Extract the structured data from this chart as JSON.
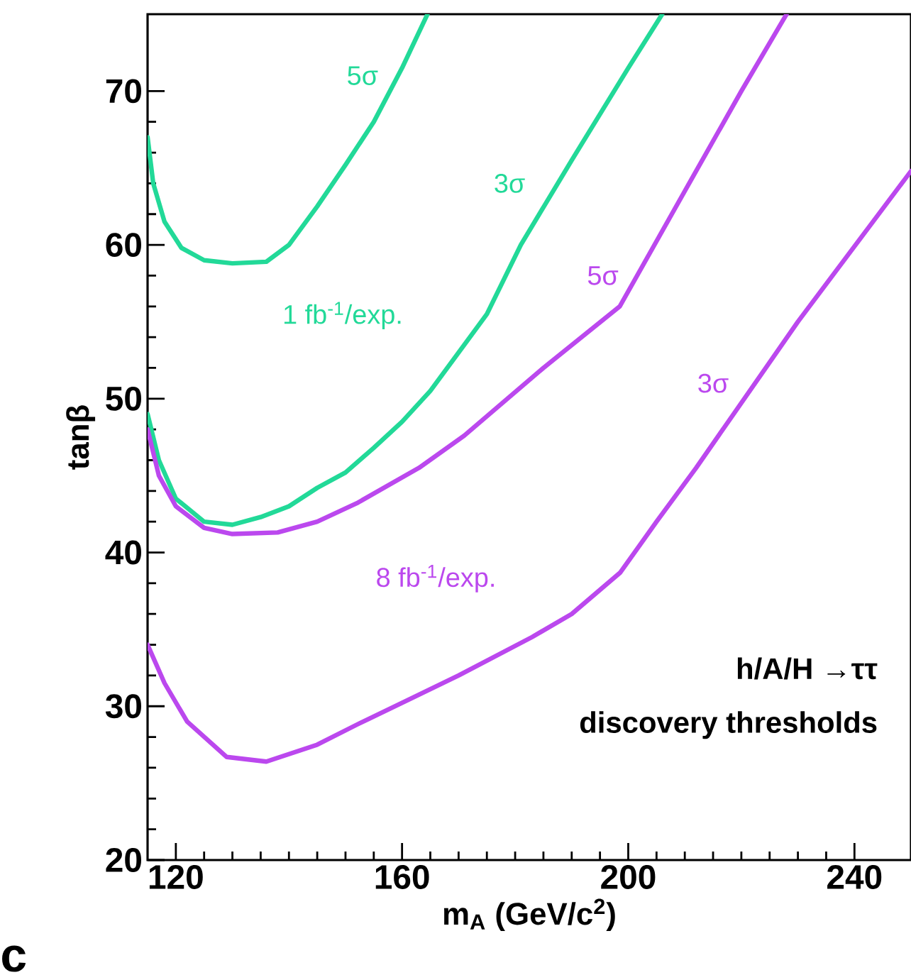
{
  "chart_data": {
    "type": "line",
    "title": "h/A/H →ττ",
    "subtitle": "discovery thresholds",
    "xlabel": "m$_{A}$  (GeV/c$^{2}$)",
    "ylabel": "tanβ",
    "xlim": [
      115,
      250
    ],
    "ylim": [
      20,
      75
    ],
    "xticks": [
      120,
      160,
      200,
      240
    ],
    "yticks": [
      20,
      30,
      40,
      50,
      60,
      70
    ],
    "marker": "none",
    "line_style": "solid",
    "series": [
      {
        "color": "#22d998",
        "x": [
          115,
          116,
          118,
          121,
          125,
          130,
          136,
          140,
          145,
          150,
          155,
          160,
          164.5
        ],
        "values": [
          67,
          64,
          61.5,
          59.8,
          59,
          58.8,
          58.9,
          60,
          62.5,
          65.2,
          68,
          71.5,
          75
        ]
      },
      {
        "color": "#22d998",
        "x": [
          115,
          117,
          120,
          125,
          130,
          135,
          140,
          145,
          150,
          155,
          160,
          165,
          170,
          175,
          181,
          190,
          200,
          206
        ],
        "values": [
          49,
          46,
          43.5,
          42,
          41.8,
          42.3,
          43,
          44.2,
          45.2,
          46.8,
          48.5,
          50.5,
          53,
          55.5,
          60,
          65.5,
          71.5,
          75
        ]
      },
      {
        "color": "#bb48ee",
        "x": [
          115,
          117,
          120,
          125,
          130,
          138,
          145,
          152,
          163,
          171,
          185,
          198.5,
          210,
          220,
          228
        ],
        "values": [
          48,
          45,
          43,
          41.6,
          41.2,
          41.3,
          42,
          43.2,
          45.5,
          47.6,
          52,
          56,
          63.5,
          70,
          75
        ]
      },
      {
        "color": "#bb48ee",
        "x": [
          115,
          118,
          122,
          129,
          136,
          145,
          152,
          161,
          170,
          183,
          190,
          198.6,
          205,
          212,
          230,
          250
        ],
        "values": [
          34,
          31.5,
          29,
          26.7,
          26.4,
          27.5,
          28.8,
          30.4,
          32,
          34.5,
          36,
          38.7,
          42,
          45.5,
          55,
          64.8
        ]
      }
    ],
    "annotations": [
      "5σ",
      "3σ",
      "1 fb$^{-1}$/exp.",
      "5σ",
      "3σ",
      "8 fb$^{-1}$/exp.",
      "c"
    ]
  }
}
